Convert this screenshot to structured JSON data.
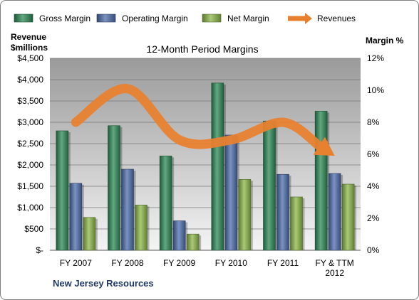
{
  "chart_data": {
    "type": "bar",
    "title": "12-Month Period Margins",
    "company": "New Jersey Resources",
    "categories": [
      "FY 2007",
      "FY 2008",
      "FY 2009",
      "FY 2010",
      "FY 2011",
      "FY & TTM 2012"
    ],
    "series": [
      {
        "name": "Gross Margin",
        "axis": "left",
        "color": "#2e8b57",
        "values": [
          2800,
          2920,
          2210,
          3920,
          3030,
          3260
        ]
      },
      {
        "name": "Operating Margin",
        "axis": "left",
        "color": "#4f6fae",
        "values": [
          1570,
          1900,
          690,
          2700,
          1780,
          1800
        ]
      },
      {
        "name": "Net Margin",
        "axis": "left",
        "color": "#8db84a",
        "values": [
          770,
          1060,
          380,
          1660,
          1250,
          1550
        ]
      },
      {
        "name": "Revenues",
        "type": "line",
        "axis": "right",
        "color": "#e8812f",
        "values": [
          8.0,
          10.1,
          6.9,
          6.9,
          8.0,
          5.9
        ]
      }
    ],
    "ylabel_left": [
      "Revenue",
      "$millions"
    ],
    "ylabel_right": "Margin %",
    "ylim_left": [
      0,
      4500
    ],
    "ylim_right": [
      0,
      12
    ],
    "yticks_left": [
      "$-",
      "$500",
      "$1,000",
      "$1,500",
      "$2,000",
      "$2,500",
      "$3,000",
      "$3,500",
      "$4,000",
      "$4,500"
    ],
    "yticks_right": [
      "0%",
      "2%",
      "4%",
      "6%",
      "8%",
      "10%",
      "12%"
    ],
    "legend": "top",
    "grid": true
  }
}
